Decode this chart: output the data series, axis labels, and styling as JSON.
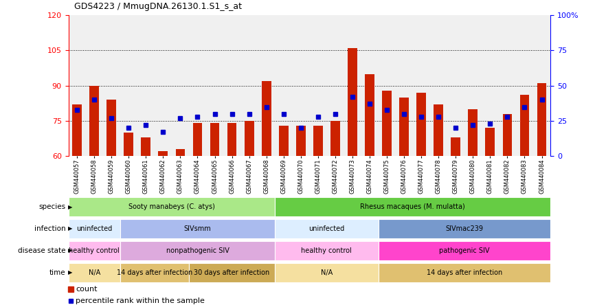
{
  "title": "GDS4223 / MmugDNA.26130.1.S1_s_at",
  "samples": [
    "GSM440057",
    "GSM440058",
    "GSM440059",
    "GSM440060",
    "GSM440061",
    "GSM440062",
    "GSM440063",
    "GSM440064",
    "GSM440065",
    "GSM440066",
    "GSM440067",
    "GSM440068",
    "GSM440069",
    "GSM440070",
    "GSM440071",
    "GSM440072",
    "GSM440073",
    "GSM440074",
    "GSM440075",
    "GSM440076",
    "GSM440077",
    "GSM440078",
    "GSM440079",
    "GSM440080",
    "GSM440081",
    "GSM440082",
    "GSM440083",
    "GSM440084"
  ],
  "counts": [
    82,
    90,
    84,
    70,
    68,
    62,
    63,
    74,
    74,
    74,
    75,
    92,
    73,
    73,
    73,
    75,
    106,
    95,
    88,
    85,
    87,
    82,
    68,
    80,
    72,
    78,
    86,
    91
  ],
  "percentile": [
    33,
    40,
    27,
    20,
    22,
    17,
    27,
    28,
    30,
    30,
    30,
    35,
    30,
    20,
    28,
    30,
    42,
    37,
    33,
    30,
    28,
    28,
    20,
    22,
    23,
    28,
    35,
    40
  ],
  "ymin": 60,
  "ymax": 120,
  "yticks_left": [
    60,
    75,
    90,
    105,
    120
  ],
  "yticks_right": [
    0,
    25,
    50,
    75,
    100
  ],
  "bar_color": "#cc2200",
  "dot_color": "#0000cc",
  "plot_bg": "#f0f0f0",
  "species_row": {
    "label": "species",
    "segments": [
      {
        "text": "Sooty manabeys (C. atys)",
        "start": 0,
        "end": 12,
        "color": "#aae888"
      },
      {
        "text": "Rhesus macaques (M. mulatta)",
        "start": 12,
        "end": 28,
        "color": "#66cc44"
      }
    ]
  },
  "infection_row": {
    "label": "infection",
    "segments": [
      {
        "text": "uninfected",
        "start": 0,
        "end": 3,
        "color": "#ddeeff"
      },
      {
        "text": "SIVsmm",
        "start": 3,
        "end": 12,
        "color": "#aabbee"
      },
      {
        "text": "uninfected",
        "start": 12,
        "end": 18,
        "color": "#ddeeff"
      },
      {
        "text": "SIVmac239",
        "start": 18,
        "end": 28,
        "color": "#7799cc"
      }
    ]
  },
  "disease_row": {
    "label": "disease state",
    "segments": [
      {
        "text": "healthy control",
        "start": 0,
        "end": 3,
        "color": "#ffbbee"
      },
      {
        "text": "nonpathogenic SIV",
        "start": 3,
        "end": 12,
        "color": "#ddaadd"
      },
      {
        "text": "healthy control",
        "start": 12,
        "end": 18,
        "color": "#ffbbee"
      },
      {
        "text": "pathogenic SIV",
        "start": 18,
        "end": 28,
        "color": "#ff44cc"
      }
    ]
  },
  "time_row": {
    "label": "time",
    "segments": [
      {
        "text": "N/A",
        "start": 0,
        "end": 3,
        "color": "#f5e0a0"
      },
      {
        "text": "14 days after infection",
        "start": 3,
        "end": 7,
        "color": "#e0c070"
      },
      {
        "text": "30 days after infection",
        "start": 7,
        "end": 12,
        "color": "#ccaa55"
      },
      {
        "text": "N/A",
        "start": 12,
        "end": 18,
        "color": "#f5e0a0"
      },
      {
        "text": "14 days after infection",
        "start": 18,
        "end": 28,
        "color": "#e0c070"
      }
    ]
  },
  "legend_items": [
    {
      "color": "#cc2200",
      "label": "count"
    },
    {
      "color": "#0000cc",
      "label": "percentile rank within the sample"
    }
  ]
}
